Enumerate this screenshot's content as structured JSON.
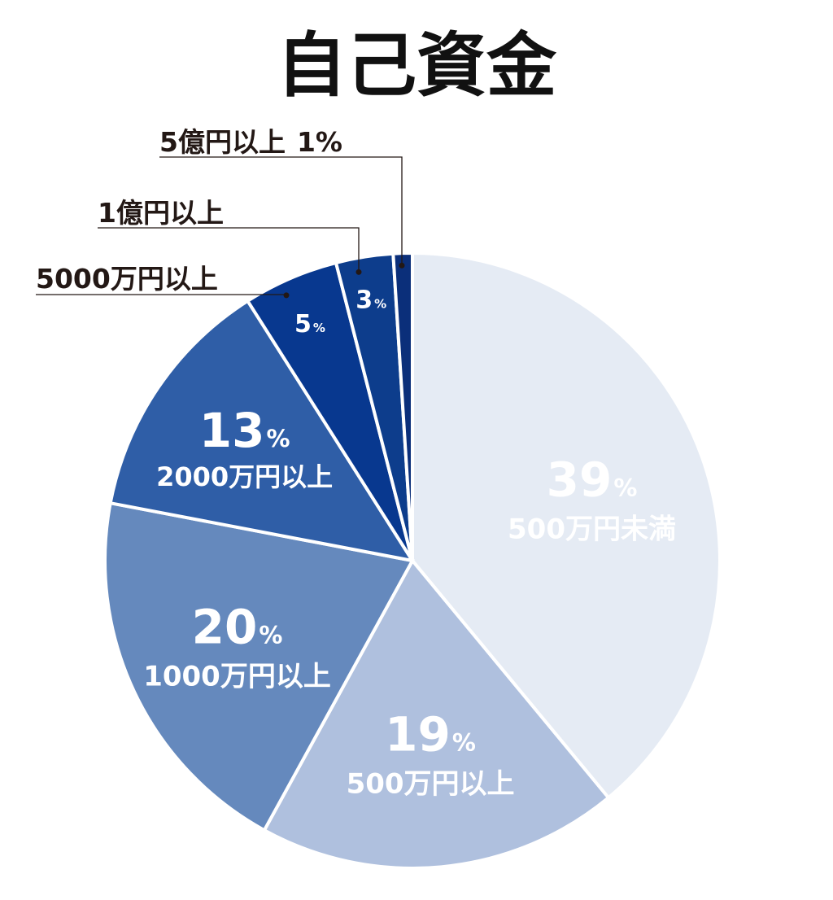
{
  "chart_data": {
    "type": "pie",
    "title": "自己資金",
    "slices": [
      {
        "label": "500万円未満",
        "value": 39,
        "value_text": "39",
        "color": "#e5ebf4"
      },
      {
        "label": "500万円以上",
        "value": 19,
        "value_text": "19",
        "color": "#afc0de"
      },
      {
        "label": "1000万円以上",
        "value": 20,
        "value_text": "20",
        "color": "#6589bd"
      },
      {
        "label": "2000万円以上",
        "value": 13,
        "value_text": "13",
        "color": "#2f5ea7"
      },
      {
        "label": "5000万円以上",
        "value": 5,
        "value_text": "5",
        "color": "#08388f"
      },
      {
        "label": "1億円以上",
        "value": 3,
        "value_text": "3",
        "color": "#0d3d8c"
      },
      {
        "label": "5億円以上",
        "value": 1,
        "value_text": "1%",
        "color": "#0b2f7a"
      }
    ],
    "percent_sign": "%",
    "start_angle": "12 o'clock",
    "direction": "clockwise"
  }
}
